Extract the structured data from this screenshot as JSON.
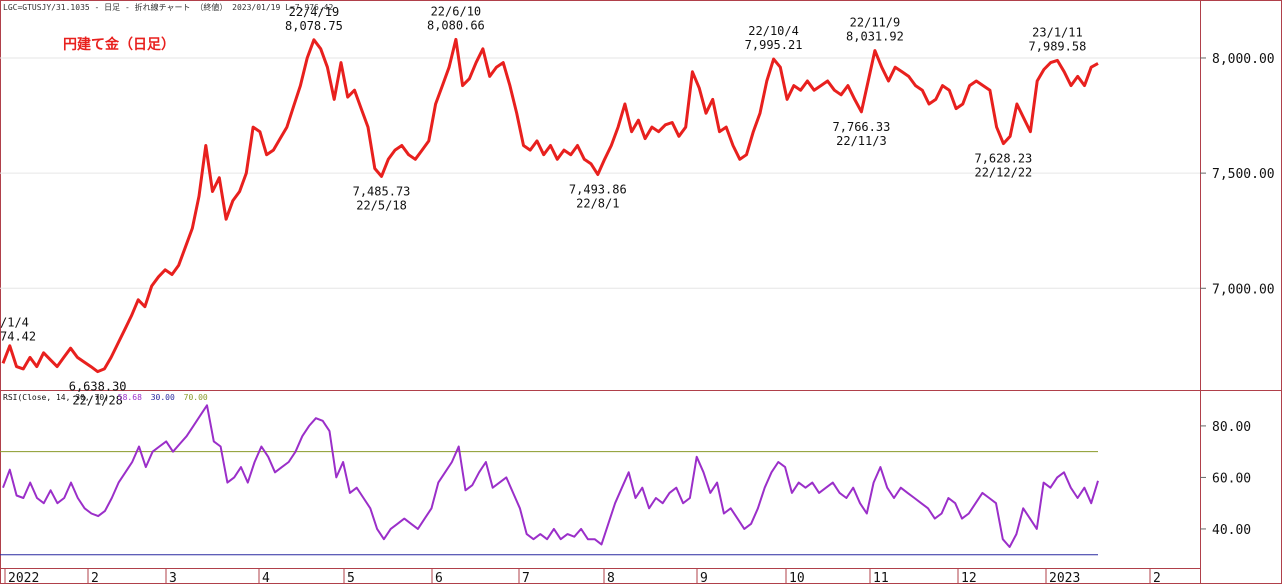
{
  "header": {
    "symbol_line": "LGC=GTUSJY/31.1035 - 日足 - 折れ線チャート （終値） 2023/01/19 L=7,976.42"
  },
  "chart_title": "円建て金（日足）",
  "colors": {
    "price_line": "#e8201e",
    "rsi_line": "#9b2fc9",
    "rsi_upper": "#8a9a2a",
    "rsi_lower": "#2a2aa0",
    "frame": "#b0404a"
  },
  "chart_data": [
    {
      "type": "line",
      "title": "円建て金（日足）",
      "ylim": [
        6580,
        8230
      ],
      "y_ticks": [
        "8,000.00",
        "7,500.00",
        "7,000.00"
      ],
      "y_tick_values": [
        8000,
        7500,
        7000
      ],
      "x_tick_labels": [
        "2022",
        "2",
        "3",
        "4",
        "5",
        "6",
        "7",
        "8",
        "9",
        "10",
        "11",
        "12",
        "2023",
        "2"
      ],
      "series": [
        {
          "values": [
            6674.42,
            6750,
            6660,
            6650,
            6700,
            6660,
            6720,
            6690,
            6660,
            6700,
            6740,
            6700,
            6680,
            6660,
            6638.3,
            6650,
            6700,
            6760,
            6820,
            6880,
            6950,
            6920,
            7010,
            7050,
            7080,
            7060,
            7100,
            7180,
            7260,
            7400,
            7620,
            7420,
            7480,
            7300,
            7380,
            7420,
            7500,
            7700,
            7680,
            7580,
            7600,
            7650,
            7700,
            7790,
            7880,
            8000,
            8078.75,
            8040,
            7960,
            7820,
            7980,
            7830,
            7860,
            7780,
            7700,
            7520,
            7485.73,
            7560,
            7600,
            7620,
            7580,
            7560,
            7600,
            7640,
            7800,
            7880,
            7960,
            8080.66,
            7880,
            7910,
            7980,
            8040,
            7920,
            7960,
            7980,
            7880,
            7760,
            7620,
            7600,
            7640,
            7580,
            7620,
            7560,
            7600,
            7580,
            7620,
            7560,
            7540,
            7493.86,
            7560,
            7620,
            7700,
            7800,
            7680,
            7730,
            7650,
            7700,
            7680,
            7710,
            7720,
            7660,
            7700,
            7940,
            7870,
            7760,
            7820,
            7680,
            7700,
            7620,
            7560,
            7580,
            7680,
            7760,
            7900,
            7995.21,
            7960,
            7820,
            7880,
            7860,
            7900,
            7860,
            7880,
            7900,
            7860,
            7840,
            7880,
            7820,
            7766.33,
            7900,
            8031.92,
            7960,
            7900,
            7960,
            7940,
            7920,
            7880,
            7860,
            7800,
            7820,
            7880,
            7860,
            7780,
            7800,
            7880,
            7900,
            7880,
            7860,
            7700,
            7628.23,
            7660,
            7800,
            7740,
            7680,
            7900,
            7950,
            7980,
            7989.58,
            7940,
            7880,
            7920,
            7880,
            7960,
            7976.42
          ]
        }
      ],
      "annotations": [
        {
          "value": "74.42",
          "date": "/1/4",
          "y": 6674.42
        },
        {
          "value": "6,638.30",
          "date": "22/1/28",
          "y": 6638.3
        },
        {
          "value": "8,078.75",
          "date": "22/4/19",
          "y": 8078.75
        },
        {
          "value": "7,485.73",
          "date": "22/5/18",
          "y": 7485.73
        },
        {
          "value": "8,080.66",
          "date": "22/6/10",
          "y": 8080.66
        },
        {
          "value": "7,493.86",
          "date": "22/8/1",
          "y": 7493.86
        },
        {
          "value": "7,995.21",
          "date": "22/10/4",
          "y": 7995.21
        },
        {
          "value": "7,766.33",
          "date": "22/11/3",
          "y": 7766.33
        },
        {
          "value": "8,031.92",
          "date": "22/11/9",
          "y": 8031.92
        },
        {
          "value": "7,628.23",
          "date": "22/12/22",
          "y": 7628.23
        },
        {
          "value": "7,989.58",
          "date": "23/1/11",
          "y": 7989.58
        }
      ]
    },
    {
      "type": "line",
      "title": "RSI(Close, 14, 30, 70)",
      "legend_values": [
        "58.68",
        "30.00",
        "70.00"
      ],
      "ylim": [
        26,
        92
      ],
      "y_ticks": [
        "80.00",
        "60.00",
        "40.00"
      ],
      "y_tick_values": [
        80,
        60,
        40
      ],
      "reference_lines": [
        70,
        30
      ],
      "series": [
        {
          "values": [
            56,
            63,
            53,
            52,
            58,
            52,
            50,
            55,
            50,
            52,
            58,
            52,
            48,
            46,
            45,
            47,
            52,
            58,
            62,
            66,
            72,
            64,
            70,
            72,
            74,
            70,
            73,
            76,
            80,
            84,
            88,
            74,
            72,
            58,
            60,
            64,
            58,
            66,
            72,
            68,
            62,
            64,
            66,
            70,
            76,
            80,
            83,
            82,
            78,
            60,
            66,
            54,
            56,
            52,
            48,
            40,
            36,
            40,
            42,
            44,
            42,
            40,
            44,
            48,
            58,
            62,
            66,
            72,
            55,
            57,
            62,
            66,
            56,
            58,
            60,
            54,
            48,
            38,
            36,
            38,
            36,
            40,
            36,
            38,
            37,
            40,
            36,
            36,
            34,
            42,
            50,
            56,
            62,
            52,
            56,
            48,
            52,
            50,
            54,
            56,
            50,
            52,
            68,
            62,
            54,
            58,
            46,
            48,
            44,
            40,
            42,
            48,
            56,
            62,
            66,
            64,
            54,
            58,
            56,
            58,
            54,
            56,
            58,
            54,
            52,
            56,
            50,
            46,
            58,
            64,
            56,
            52,
            56,
            54,
            52,
            50,
            48,
            44,
            46,
            52,
            50,
            44,
            46,
            50,
            54,
            52,
            50,
            36,
            33,
            38,
            48,
            44,
            40,
            58,
            56,
            60,
            62,
            56,
            52,
            56,
            50,
            58.68
          ]
        }
      ]
    }
  ]
}
